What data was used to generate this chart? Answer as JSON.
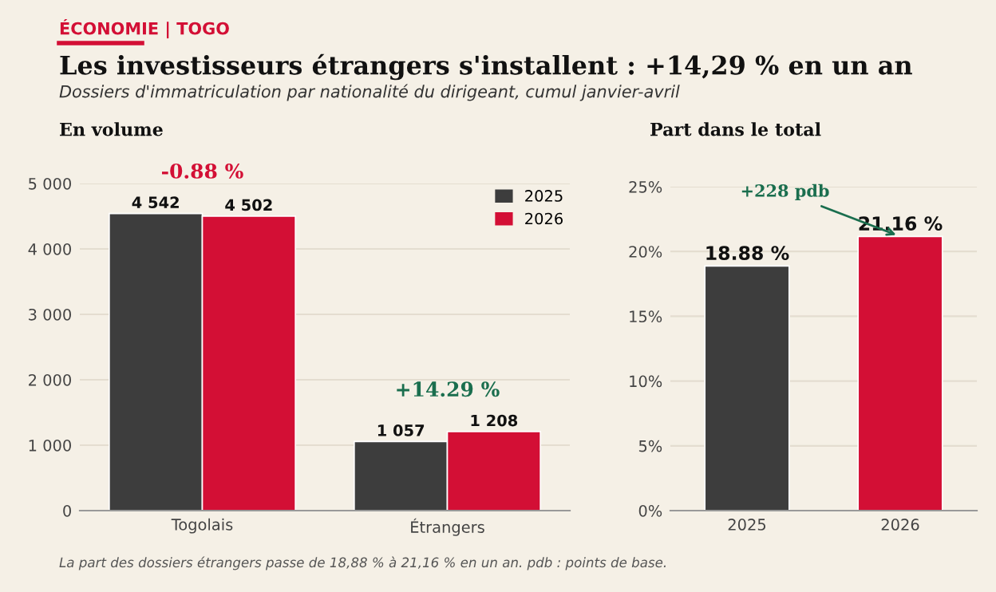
{
  "chart_data": [
    {
      "type": "bar",
      "title": "En volume",
      "categories": [
        "Togolais",
        "Étrangers"
      ],
      "series": [
        {
          "name": "2025",
          "color": "#3d3d3d",
          "values": [
            4542,
            1057
          ],
          "value_labels": [
            "4 542",
            "1 057"
          ]
        },
        {
          "name": "2026",
          "color": "#d30f35",
          "values": [
            4502,
            1208
          ],
          "value_labels": [
            "4 502",
            "1 208"
          ]
        }
      ],
      "ylim": [
        0,
        5000
      ],
      "yticks": [
        0,
        {
          "value": 1000,
          "label": "1 000"
        },
        {
          "value": 2000,
          "label": "2 000"
        },
        {
          "value": 3000,
          "label": "3 000"
        },
        {
          "value": 4000,
          "label": "4 000"
        },
        {
          "value": 5000,
          "label": "5 000"
        }
      ],
      "grid": "y",
      "legend": "top right",
      "annotations": [
        "ÉCONOMIE | TOGO",
        "Les investisseurs étrangers s'installent : +14,29 % en un an",
        "Dossiers d'immatriculation par nationalité du dirigeant, cumul janvier-avril",
        "-0.88 %",
        "+14.29 %",
        "La part des dossiers étrangers passe de 18,88 % à 21,16 % en un an. pdb : points de base."
      ]
    },
    {
      "type": "bar",
      "title": "Part dans le total",
      "categories": [
        "2025",
        "2026"
      ],
      "values": [
        18.88,
        21.16
      ],
      "colors": [
        "#3d3d3d",
        "#d30f35"
      ],
      "value_labels": [
        "18.88 %",
        "21.16 %"
      ],
      "ylim": [
        0,
        25
      ],
      "yticks": [
        {
          "value": 0,
          "label": "0%"
        },
        {
          "value": 5,
          "label": "5%"
        },
        {
          "value": 10,
          "label": "10%"
        },
        {
          "value": 15,
          "label": "15%"
        },
        {
          "value": 20,
          "label": "20%"
        },
        {
          "value": 25,
          "label": "25%"
        }
      ],
      "grid": "y",
      "annotations": [
        {
          "text": "+228 pdb",
          "x": "2026",
          "y": 21.16
        }
      ]
    }
  ]
}
